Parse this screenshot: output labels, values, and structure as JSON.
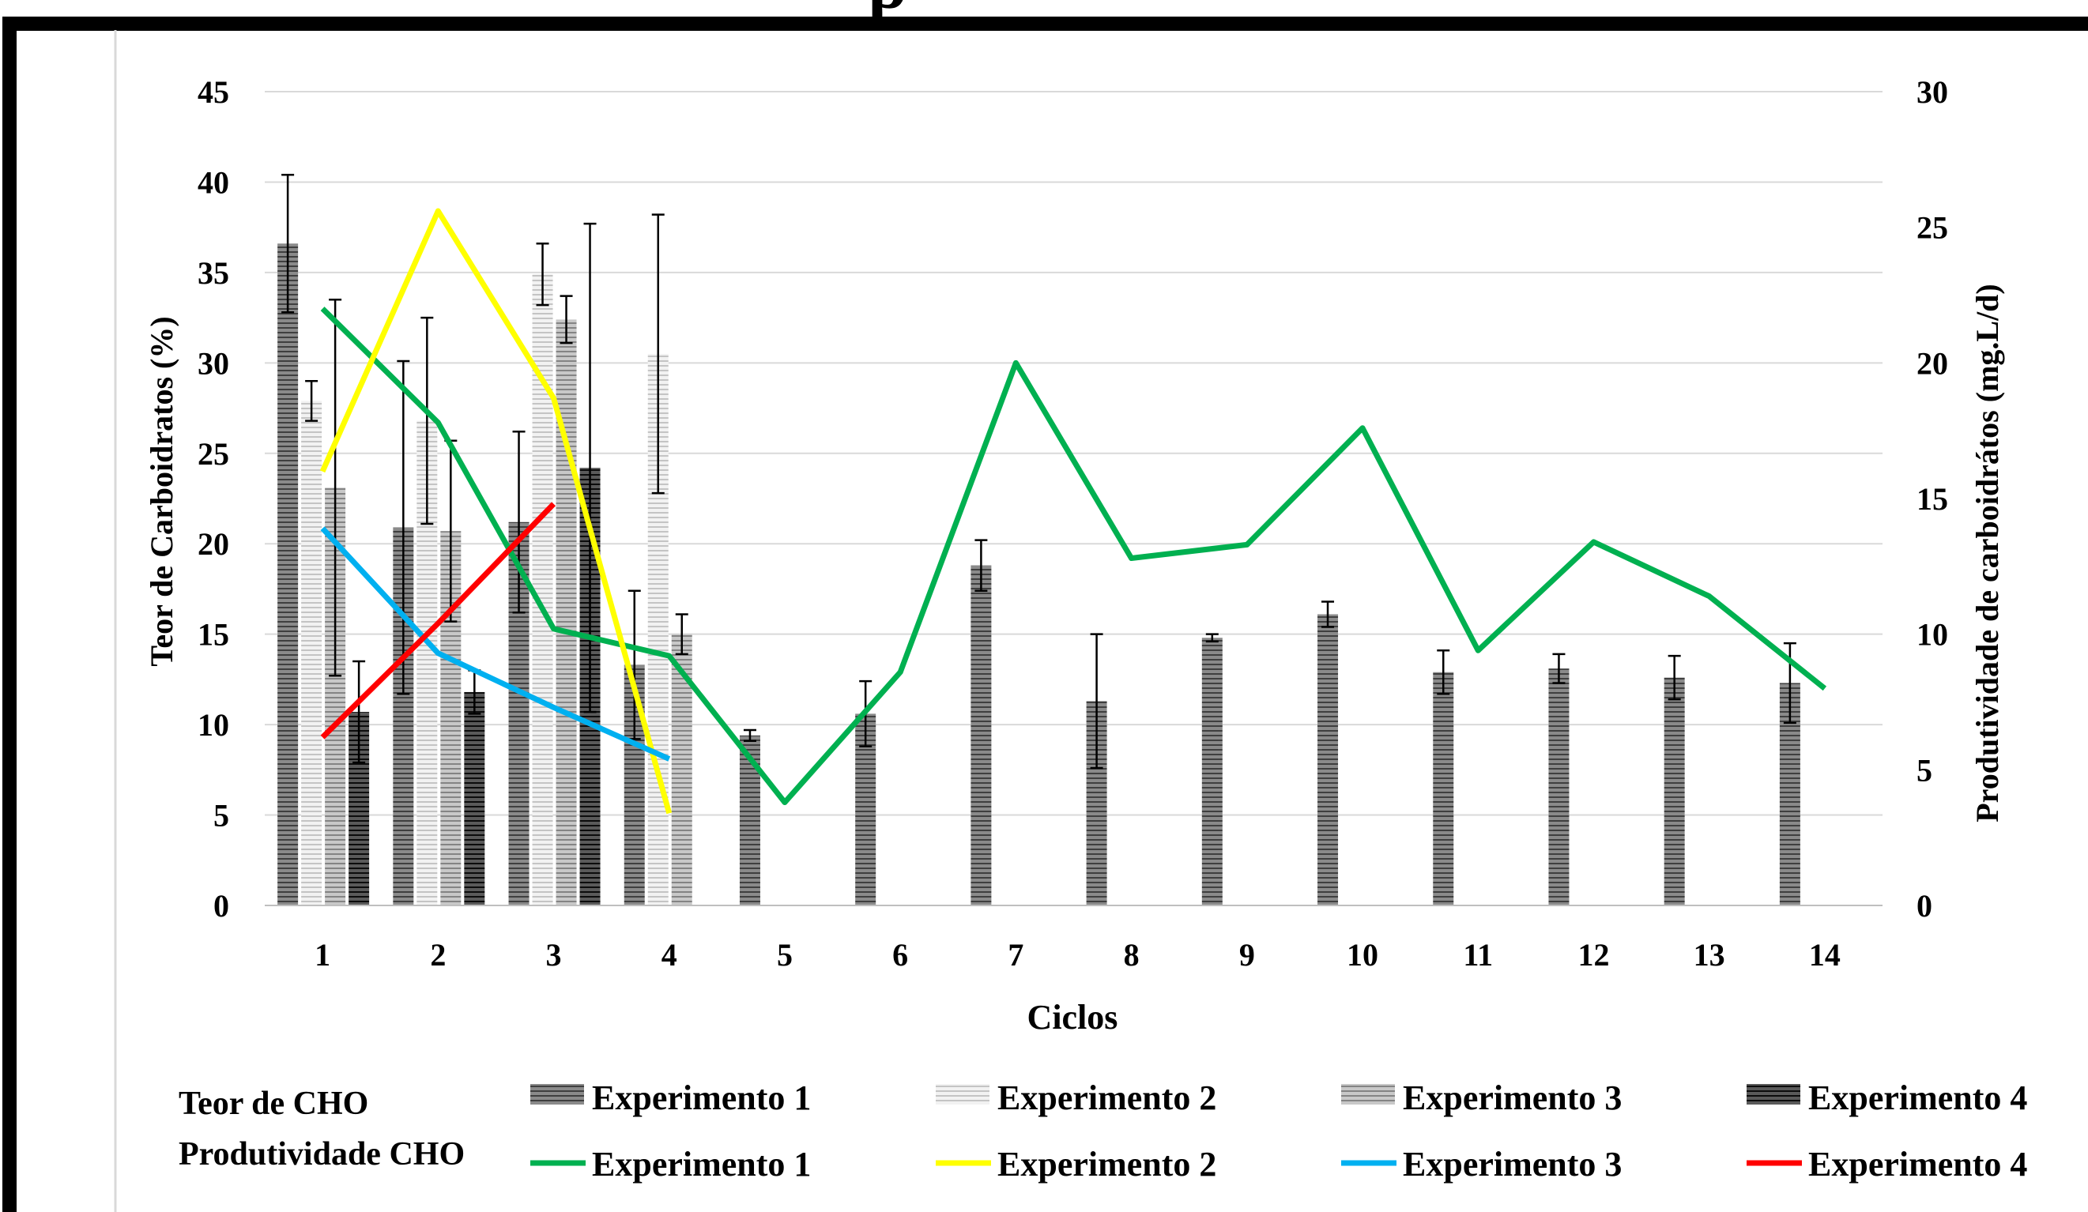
{
  "page": {
    "title_fragment": "p"
  },
  "chart_data": {
    "type": "bar",
    "categories": [
      "1",
      "2",
      "3",
      "4",
      "5",
      "6",
      "7",
      "8",
      "9",
      "10",
      "11",
      "12",
      "13",
      "14"
    ],
    "xlabel": "Ciclos",
    "ylabel": "Teor de Carboidratos (%)",
    "y2label": "Produtividade de carboidrátos (mg.L/d)",
    "ylim": [
      0,
      45
    ],
    "y2lim": [
      0,
      30
    ],
    "yticks": [
      "0",
      "5",
      "10",
      "15",
      "20",
      "25",
      "30",
      "35",
      "40",
      "45"
    ],
    "y2ticks": [
      "0",
      "5",
      "10",
      "15",
      "20",
      "25",
      "30"
    ],
    "grid": true,
    "legend_position": "bottom",
    "legend_headers": [
      "Teor de CHO",
      "Produtividade CHO"
    ],
    "bar_series": [
      {
        "name": "Experimento 1",
        "color": "#6b6b6b",
        "values": [
          36.6,
          20.9,
          21.2,
          13.3,
          9.4,
          10.6,
          18.8,
          11.3,
          14.8,
          16.1,
          12.9,
          13.1,
          12.6,
          12.3
        ],
        "errors": [
          3.8,
          9.2,
          5.0,
          4.1,
          0.3,
          1.8,
          1.4,
          3.7,
          0.2,
          0.7,
          1.2,
          0.8,
          1.2,
          2.2
        ]
      },
      {
        "name": "Experimento 2",
        "color": "#d9d9d9",
        "values": [
          27.9,
          26.8,
          34.9,
          30.5
        ],
        "errors": [
          1.1,
          5.7,
          1.7,
          7.7
        ]
      },
      {
        "name": "Experimento 3",
        "color": "#a6a6a6",
        "values": [
          23.1,
          20.7,
          32.4,
          15.0
        ],
        "errors": [
          10.4,
          5.0,
          1.3,
          1.1
        ]
      },
      {
        "name": "Experimento 4",
        "color": "#262626",
        "values": [
          10.7,
          11.8,
          24.2
        ],
        "errors": [
          2.8,
          1.2,
          13.5
        ]
      }
    ],
    "line_series": [
      {
        "name": "Experimento 1",
        "color": "#00b050",
        "values": [
          22.0,
          17.8,
          10.2,
          9.2,
          3.8,
          8.6,
          20.0,
          12.8,
          13.3,
          17.6,
          9.4,
          13.4,
          11.4,
          8.0
        ]
      },
      {
        "name": "Experimento 2",
        "color": "#ffff00",
        "values": [
          16.0,
          25.6,
          18.7,
          3.4
        ]
      },
      {
        "name": "Experimento 3",
        "color": "#00b0f0",
        "values": [
          13.9,
          9.3,
          7.3,
          5.4
        ]
      },
      {
        "name": "Experimento 4",
        "color": "#ff0000",
        "values": [
          6.2,
          10.4,
          14.8
        ]
      }
    ]
  }
}
